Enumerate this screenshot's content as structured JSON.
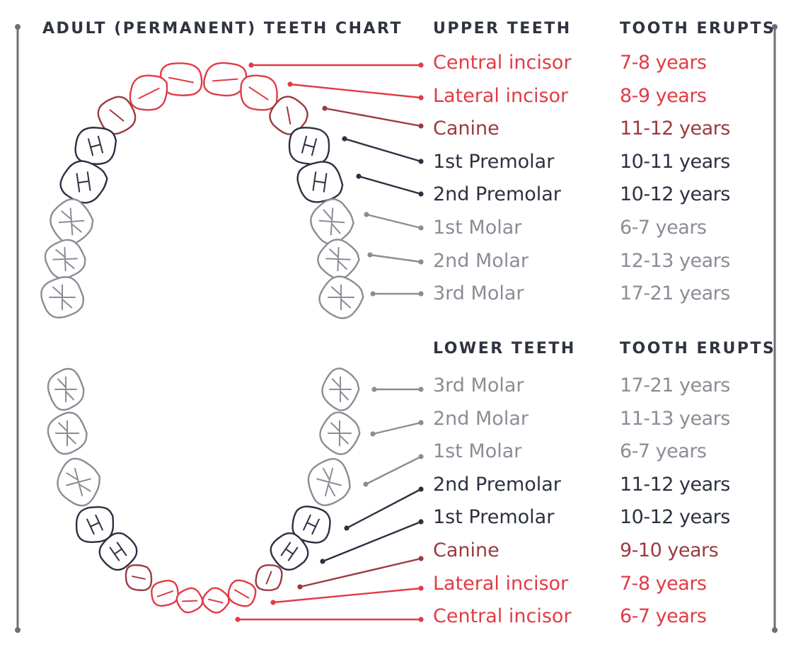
{
  "title": "ADULT (PERMANENT) TEETH CHART",
  "upper": {
    "heading": "UPPER TEETH",
    "erupts_heading": "TOOTH ERUPTS",
    "rows": [
      {
        "label": "Central incisor",
        "age": "7-8 years",
        "tone": "red"
      },
      {
        "label": "Lateral incisor",
        "age": "8-9 years",
        "tone": "red"
      },
      {
        "label": "Canine",
        "age": "11-12 years",
        "tone": "dark-red"
      },
      {
        "label": "1st Premolar",
        "age": "10-11 years",
        "tone": "dark"
      },
      {
        "label": "2nd Premolar",
        "age": "10-12 years",
        "tone": "dark"
      },
      {
        "label": "1st Molar",
        "age": "6-7 years",
        "tone": "gray"
      },
      {
        "label": "2nd Molar",
        "age": "12-13 years",
        "tone": "gray"
      },
      {
        "label": "3rd Molar",
        "age": "17-21 years",
        "tone": "gray"
      }
    ]
  },
  "lower": {
    "heading": "LOWER TEETH",
    "erupts_heading": "TOOTH ERUPTS",
    "rows": [
      {
        "label": "3rd Molar",
        "age": "17-21 years",
        "tone": "gray"
      },
      {
        "label": "2nd Molar",
        "age": "11-13 years",
        "tone": "gray"
      },
      {
        "label": "1st Molar",
        "age": "6-7 years",
        "tone": "gray"
      },
      {
        "label": "2nd Premolar",
        "age": "11-12 years",
        "tone": "dark"
      },
      {
        "label": "1st Premolar",
        "age": "10-12 years",
        "tone": "dark"
      },
      {
        "label": "Canine",
        "age": "9-10 years",
        "tone": "dark-red"
      },
      {
        "label": "Lateral incisor",
        "age": "7-8 years",
        "tone": "red"
      },
      {
        "label": "Central incisor",
        "age": "6-7 years",
        "tone": "red"
      }
    ]
  },
  "colors": {
    "red": "#e23b45",
    "dark-red": "#9b3a3f",
    "dark": "#2c3140",
    "gray": "#8b8d96",
    "frame": "#6d6f78"
  }
}
